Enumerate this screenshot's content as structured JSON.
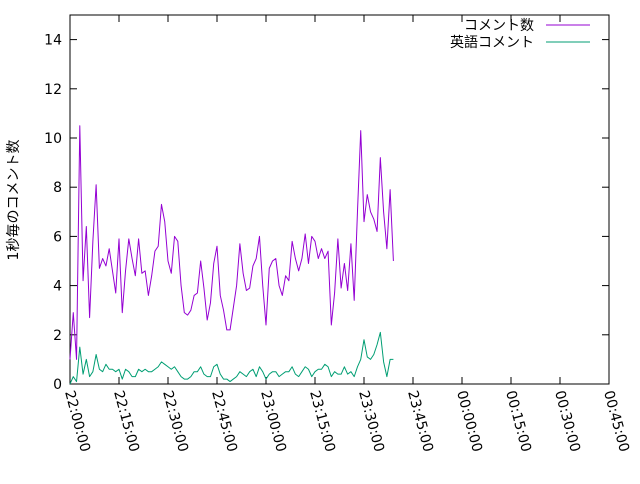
{
  "chart_data": {
    "type": "line",
    "title": "",
    "xlabel": "",
    "ylabel": "1秒毎のコメント数",
    "xlim": [
      "22:00:00",
      "00:45:00"
    ],
    "ylim": [
      0,
      15
    ],
    "y_ticks": [
      "0",
      "2",
      "4",
      "6",
      "8",
      "10",
      "12",
      "14"
    ],
    "x_ticks": [
      "22:00:00",
      "22:15:00",
      "22:30:00",
      "22:45:00",
      "23:00:00",
      "23:15:00",
      "23:30:00",
      "23:45:00",
      "00:00:00",
      "00:15:00",
      "00:30:00",
      "00:45:00"
    ],
    "grid": false,
    "legend_position": "top-right",
    "x_start_time": "22:00:00",
    "x_step_seconds": 60,
    "series": [
      {
        "name": "コメント数",
        "color": "#9400d3",
        "values": [
          1.0,
          2.9,
          1.0,
          10.5,
          4.2,
          6.4,
          2.7,
          5.8,
          8.1,
          4.7,
          5.1,
          4.8,
          5.5,
          4.6,
          3.7,
          5.9,
          2.9,
          4.6,
          5.9,
          5.1,
          4.4,
          5.9,
          4.5,
          4.6,
          3.6,
          4.4,
          5.4,
          5.6,
          7.3,
          6.6,
          5.0,
          4.5,
          6.0,
          5.8,
          4.0,
          2.9,
          2.8,
          3.0,
          3.6,
          3.7,
          5.0,
          3.9,
          2.6,
          3.3,
          4.9,
          5.6,
          3.6,
          3.0,
          2.2,
          2.2,
          3.1,
          4.0,
          5.7,
          4.5,
          3.8,
          3.9,
          4.8,
          5.1,
          6.0,
          4.0,
          2.4,
          4.7,
          5.0,
          5.1,
          4.0,
          3.6,
          4.4,
          4.2,
          5.8,
          5.1,
          4.6,
          5.1,
          6.1,
          4.9,
          6.0,
          5.8,
          5.1,
          5.5,
          5.1,
          5.4,
          2.4,
          3.7,
          5.9,
          3.9,
          4.9,
          3.8,
          5.7,
          3.4,
          7.0,
          10.3,
          6.6,
          7.7,
          7.0,
          6.7,
          6.2,
          9.2,
          7.0,
          5.5,
          7.9,
          5.0
        ]
      },
      {
        "name": "英語コメント",
        "color": "#009e73",
        "values": [
          0.0,
          0.3,
          0.1,
          1.5,
          0.4,
          1.0,
          0.3,
          0.5,
          1.2,
          0.6,
          0.5,
          0.8,
          0.6,
          0.6,
          0.5,
          0.6,
          0.2,
          0.6,
          0.5,
          0.3,
          0.3,
          0.6,
          0.5,
          0.6,
          0.5,
          0.5,
          0.6,
          0.7,
          0.9,
          0.8,
          0.7,
          0.6,
          0.7,
          0.5,
          0.3,
          0.2,
          0.2,
          0.3,
          0.5,
          0.5,
          0.7,
          0.4,
          0.3,
          0.3,
          0.7,
          0.8,
          0.4,
          0.2,
          0.2,
          0.1,
          0.2,
          0.3,
          0.5,
          0.4,
          0.3,
          0.5,
          0.6,
          0.3,
          0.7,
          0.5,
          0.2,
          0.4,
          0.5,
          0.5,
          0.3,
          0.4,
          0.5,
          0.5,
          0.7,
          0.4,
          0.3,
          0.5,
          0.7,
          0.6,
          0.3,
          0.5,
          0.6,
          0.6,
          0.8,
          0.7,
          0.3,
          0.5,
          0.4,
          0.4,
          0.7,
          0.4,
          0.5,
          0.3,
          0.7,
          1.0,
          1.8,
          1.1,
          1.0,
          1.2,
          1.6,
          2.1,
          0.9,
          0.3,
          1.0,
          1.0
        ]
      }
    ]
  }
}
